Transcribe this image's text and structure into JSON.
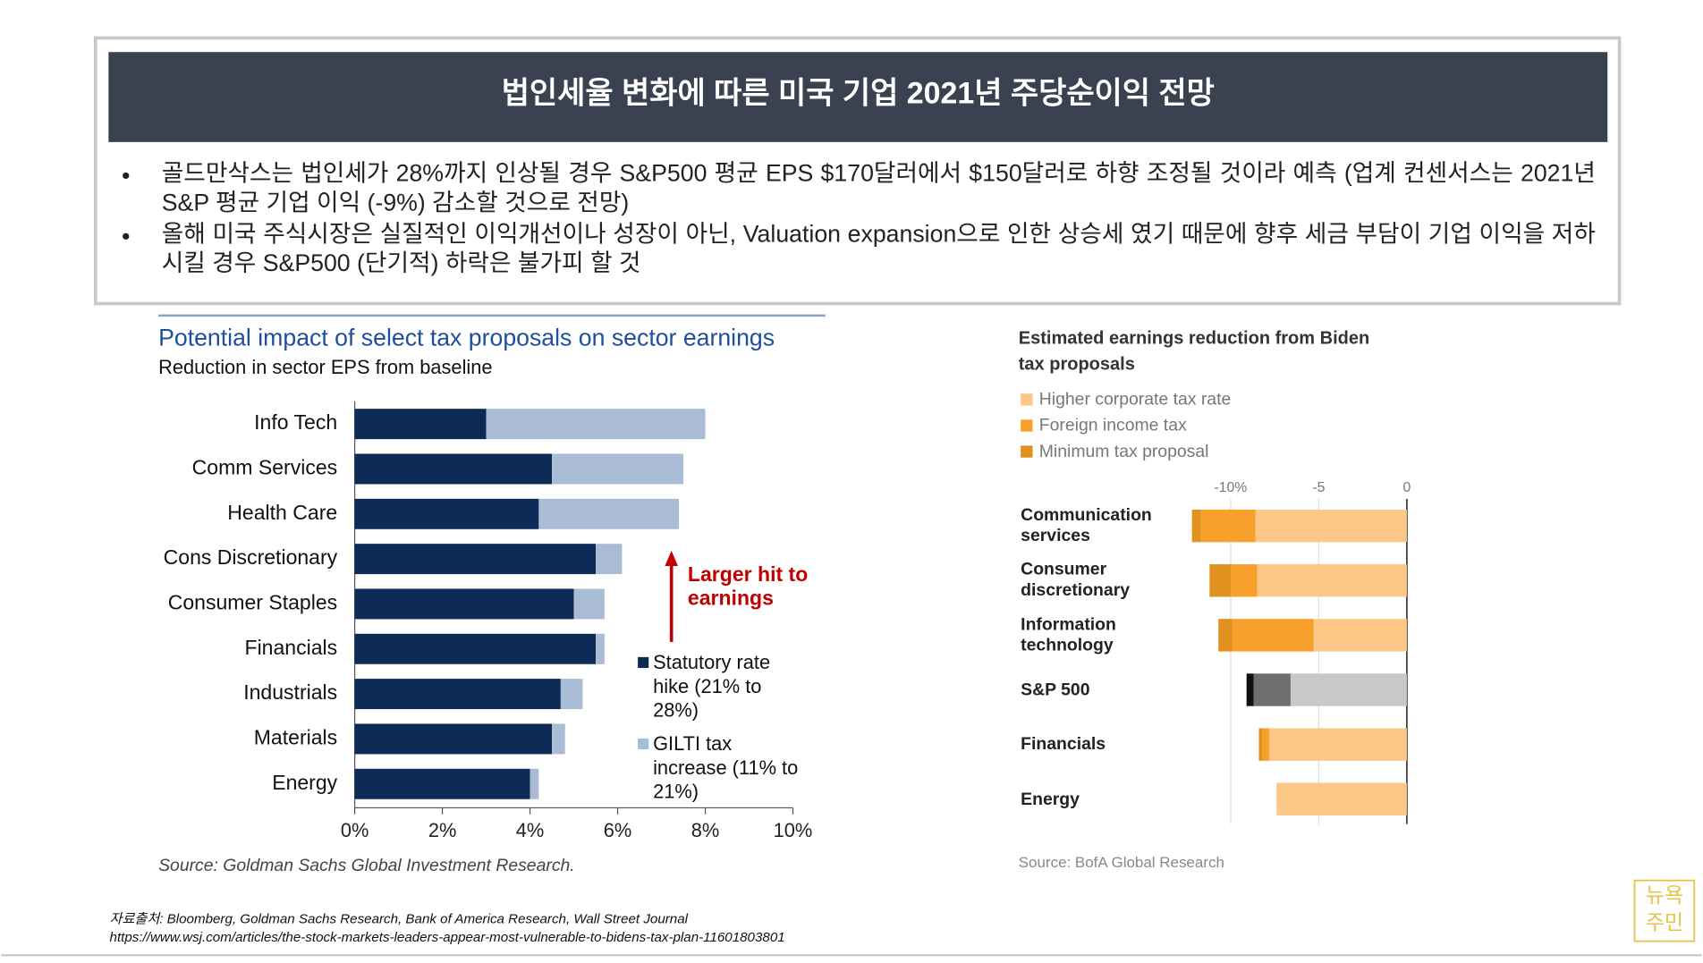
{
  "header": {
    "title": "법인세율 변화에 따른 미국 기업 2021년 주당순이익 전망"
  },
  "bullets": [
    "골드만삭스는 법인세가 28%까지 인상될 경우 S&P500 평균 EPS $170달러에서 $150달러로 하향 조정될 것이라 예측 (업계 컨센서스는 2021년 S&P 평균 기업 이익 (-9%) 감소할 것으로 전망)",
    "올해 미국 주식시장은 실질적인 이익개선이나 성장이 아닌, Valuation expansion으로 인한 상승세 였기 때문에 향후 세금 부담이 기업 이익을 저하시킬 경우 S&P500 (단기적) 하락은 불가피 할 것"
  ],
  "chart_data": [
    {
      "type": "stacked-barh",
      "title": "Potential impact of select tax proposals on sector earnings",
      "subtitle": "Reduction in sector EPS from baseline",
      "categories": [
        "Info Tech",
        "Comm Services",
        "Health Care",
        "Cons Discretionary",
        "Consumer Staples",
        "Financials",
        "Industrials",
        "Materials",
        "Energy"
      ],
      "series": [
        {
          "name": "Statutory rate hike (21% to 28%)",
          "color": "#0d2b57",
          "values": [
            3.0,
            4.5,
            4.2,
            5.5,
            5.0,
            5.5,
            4.7,
            4.5,
            4.0
          ]
        },
        {
          "name": "GILTI tax increase (11% to 21%)",
          "color": "#a9bbd5",
          "values": [
            5.0,
            3.0,
            3.2,
            0.6,
            0.7,
            0.2,
            0.5,
            0.3,
            0.2
          ]
        }
      ],
      "xlim": [
        0,
        10
      ],
      "xticks": [
        {
          "value": 0,
          "label": "0%"
        },
        {
          "value": 2,
          "label": "2%"
        },
        {
          "value": 4,
          "label": "4%"
        },
        {
          "value": 6,
          "label": "6%"
        },
        {
          "value": 8,
          "label": "8%"
        },
        {
          "value": 10,
          "label": "10%"
        }
      ],
      "annotation": "Larger hit to earnings",
      "source": "Source: Goldman Sachs Global Investment Research."
    },
    {
      "type": "stacked-barh",
      "title": "Estimated earnings reduction from Biden tax proposals",
      "categories": [
        "Communication services",
        "Consumer discretionary",
        "Information technology",
        "S&P 500",
        "Financials",
        "Energy"
      ],
      "series": [
        {
          "name": "Higher corporate tax rate",
          "color": "#fbc888",
          "point_colors": [
            "#fbc888",
            "#fbc888",
            "#fbc888",
            "#c8c8c8",
            "#fbc888",
            "#fbc888"
          ],
          "values": [
            -8.6,
            -8.5,
            -5.3,
            -6.6,
            -7.8,
            -7.4
          ]
        },
        {
          "name": "Foreign income tax",
          "color": "#f7a12c",
          "point_colors": [
            "#f7a12c",
            "#f7a12c",
            "#f7a12c",
            "#6e6e6e",
            "#f7a12c",
            "#f7a12c"
          ],
          "values": [
            -3.1,
            -1.5,
            -4.6,
            -2.1,
            -0.4,
            0
          ]
        },
        {
          "name": "Minimum tax proposal",
          "color": "#e0911e",
          "point_colors": [
            "#e0911e",
            "#e0911e",
            "#e0911e",
            "#111111",
            "#e0911e",
            "#e0911e"
          ],
          "values": [
            -0.5,
            -1.2,
            -0.8,
            -0.4,
            -0.2,
            0
          ]
        }
      ],
      "xlim": [
        -12.5,
        0
      ],
      "xticks": [
        {
          "value": -10,
          "label": "-10%"
        },
        -5,
        0
      ],
      "grid": true,
      "source": "Source: BofA Global Research"
    }
  ],
  "footer": {
    "sources": "자료출처: Bloomberg, Goldman Sachs Research, Bank of America Research, Wall Street Journal",
    "url": "https://www.wsj.com/articles/the-stock-markets-leaders-appear-most-vulnerable-to-bidens-tax-plan-11601803801"
  },
  "logo": "뉴욕 주민"
}
